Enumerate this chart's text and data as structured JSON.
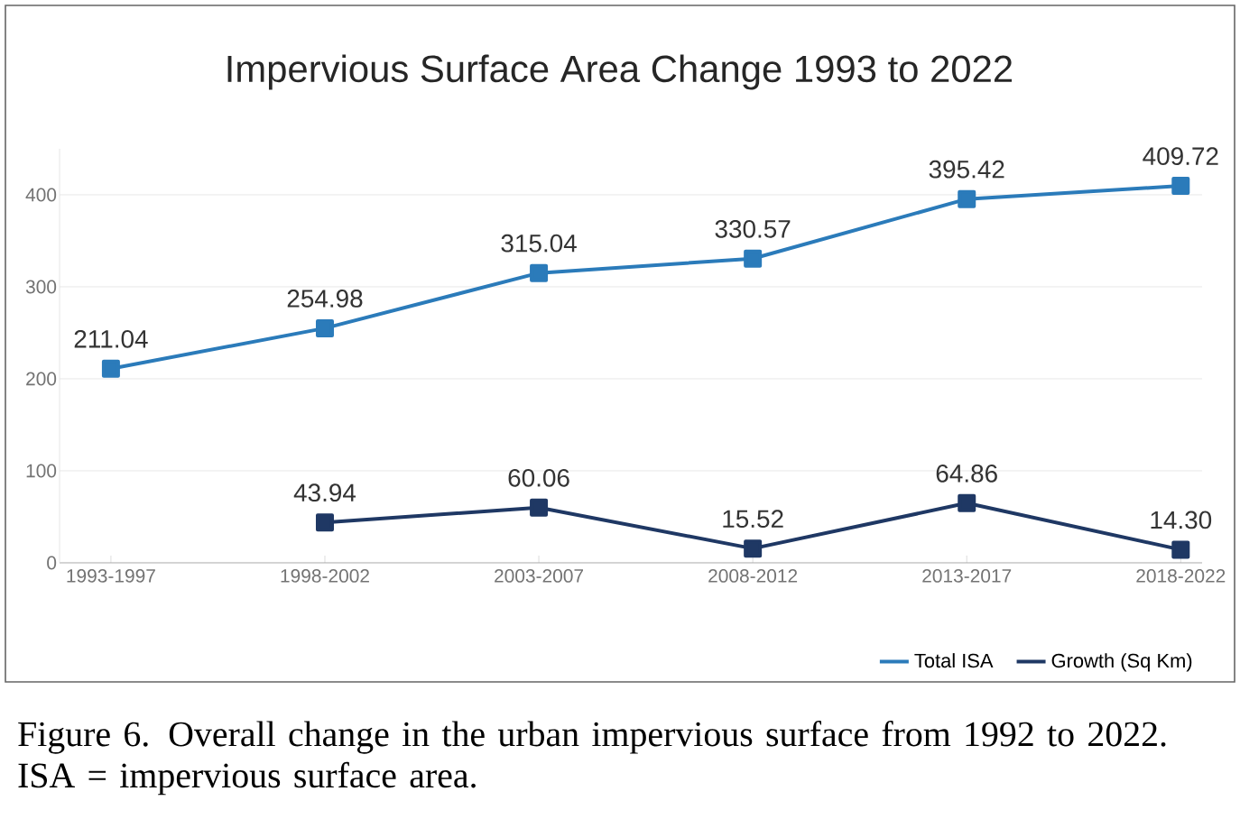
{
  "chart_data": {
    "type": "line",
    "title": "Impervious Surface Area Change 1993 to 2022",
    "categories": [
      "1993-1997",
      "1998-2002",
      "2003-2007",
      "2008-2012",
      "2013-2017",
      "2018-2022"
    ],
    "series": [
      {
        "name": "Total ISA",
        "color": "#2b7bba",
        "values": [
          211.04,
          254.98,
          315.04,
          330.57,
          395.42,
          409.72
        ],
        "value_labels": [
          "211.04",
          "254.98",
          "315.04",
          "330.57",
          "395.42",
          "409.72"
        ]
      },
      {
        "name": "Growth (Sq Km)",
        "color": "#1f3864",
        "values": [
          null,
          43.94,
          60.06,
          15.52,
          64.86,
          14.3
        ],
        "value_labels": [
          null,
          "43.94",
          "60.06",
          "15.52",
          "64.86",
          "14.30"
        ]
      }
    ],
    "ylim": [
      0,
      450
    ],
    "yticks": [
      0,
      100,
      200,
      300,
      400
    ],
    "grid": "y",
    "legend": "bottom right",
    "marker": "square",
    "line_style": "solid",
    "annotations": [
      "Figure 6. Overall change in the urban impervious surface from 1992 to 2022. ISA = impervious surface area."
    ]
  }
}
